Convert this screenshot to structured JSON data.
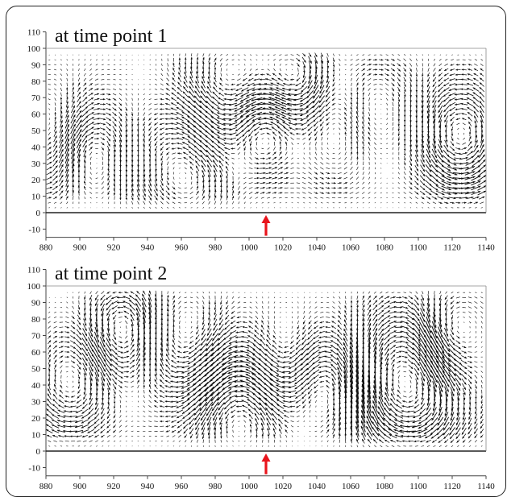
{
  "chart_data": [
    {
      "type": "quiver",
      "title": "at time point 1",
      "xlim": [
        880,
        1140
      ],
      "ylim": [
        -15,
        110
      ],
      "x_ticks": [
        "880",
        "900",
        "920",
        "940",
        "960",
        "980",
        "1000",
        "1020",
        "1040",
        "1060",
        "1080",
        "1100",
        "1120",
        "1140"
      ],
      "y_ticks": [
        "-10",
        "0",
        "10",
        "20",
        "30",
        "40",
        "50",
        "60",
        "70",
        "80",
        "90",
        "100",
        "110"
      ],
      "marker": {
        "x": 1010,
        "color": "#e8141c"
      },
      "field": {
        "vortices": [
          {
            "x": 885,
            "y": 45,
            "strength": 70,
            "radius": 18
          },
          {
            "x": 905,
            "y": 38,
            "strength": -85,
            "radius": 14
          },
          {
            "x": 965,
            "y": 25,
            "strength": 90,
            "radius": 22
          },
          {
            "x": 990,
            "y": 75,
            "strength": -80,
            "radius": 24
          },
          {
            "x": 1008,
            "y": 50,
            "strength": 110,
            "radius": 13
          },
          {
            "x": 1030,
            "y": 85,
            "strength": -90,
            "radius": 14
          },
          {
            "x": 1055,
            "y": 55,
            "strength": 60,
            "radius": 18
          },
          {
            "x": 1070,
            "y": 65,
            "strength": -70,
            "radius": 16
          },
          {
            "x": 1125,
            "y": 45,
            "strength": 110,
            "radius": 16
          }
        ],
        "uniform": [
          2,
          0
        ]
      }
    },
    {
      "type": "quiver",
      "title": "at time point 2",
      "xlim": [
        880,
        1140
      ],
      "ylim": [
        -15,
        110
      ],
      "x_ticks": [
        "880",
        "900",
        "920",
        "940",
        "960",
        "980",
        "1000",
        "1020",
        "1040",
        "1060",
        "1080",
        "1100",
        "1120",
        "1140"
      ],
      "y_ticks": [
        "-10",
        "0",
        "10",
        "20",
        "30",
        "40",
        "50",
        "60",
        "70",
        "80",
        "90",
        "100",
        "110"
      ],
      "marker": {
        "x": 1010,
        "color": "#e8141c"
      },
      "field": {
        "vortices": [
          {
            "x": 895,
            "y": 40,
            "strength": -80,
            "radius": 16
          },
          {
            "x": 925,
            "y": 75,
            "strength": 90,
            "radius": 14
          },
          {
            "x": 965,
            "y": 65,
            "strength": -70,
            "radius": 18
          },
          {
            "x": 995,
            "y": 25,
            "strength": 90,
            "radius": 20
          },
          {
            "x": 1020,
            "y": 55,
            "strength": -70,
            "radius": 16
          },
          {
            "x": 1045,
            "y": 40,
            "strength": 80,
            "radius": 15
          },
          {
            "x": 1095,
            "y": 40,
            "strength": -120,
            "radius": 24
          },
          {
            "x": 1118,
            "y": 70,
            "strength": 90,
            "radius": 14
          }
        ],
        "uniform": [
          -2,
          0
        ]
      }
    }
  ]
}
